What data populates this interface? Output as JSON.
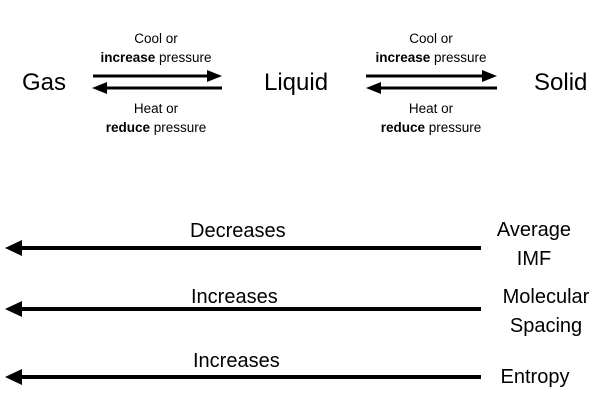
{
  "states": {
    "gas": "Gas",
    "liquid": "Liquid",
    "solid": "Solid"
  },
  "transitions": [
    {
      "forward_line1": "Cool or",
      "forward_bold": "increase",
      "forward_rest": " pressure",
      "reverse_line1": "Heat or",
      "reverse_bold": "reduce",
      "reverse_rest": " pressure"
    },
    {
      "forward_line1": "Cool or",
      "forward_bold": "increase",
      "forward_rest": " pressure",
      "reverse_line1": "Heat or",
      "reverse_bold": "reduce",
      "reverse_rest": " pressure"
    }
  ],
  "trends": [
    {
      "label": "Decreases",
      "property_line1": "Average",
      "property_line2": "IMF"
    },
    {
      "label": "Increases",
      "property_line1": "Molecular",
      "property_line2": "Spacing"
    },
    {
      "label": "Increases",
      "property_line1": "Entropy",
      "property_line2": ""
    }
  ],
  "colors": {
    "text": "#000000",
    "arrow": "#000000",
    "background": "#ffffff"
  }
}
